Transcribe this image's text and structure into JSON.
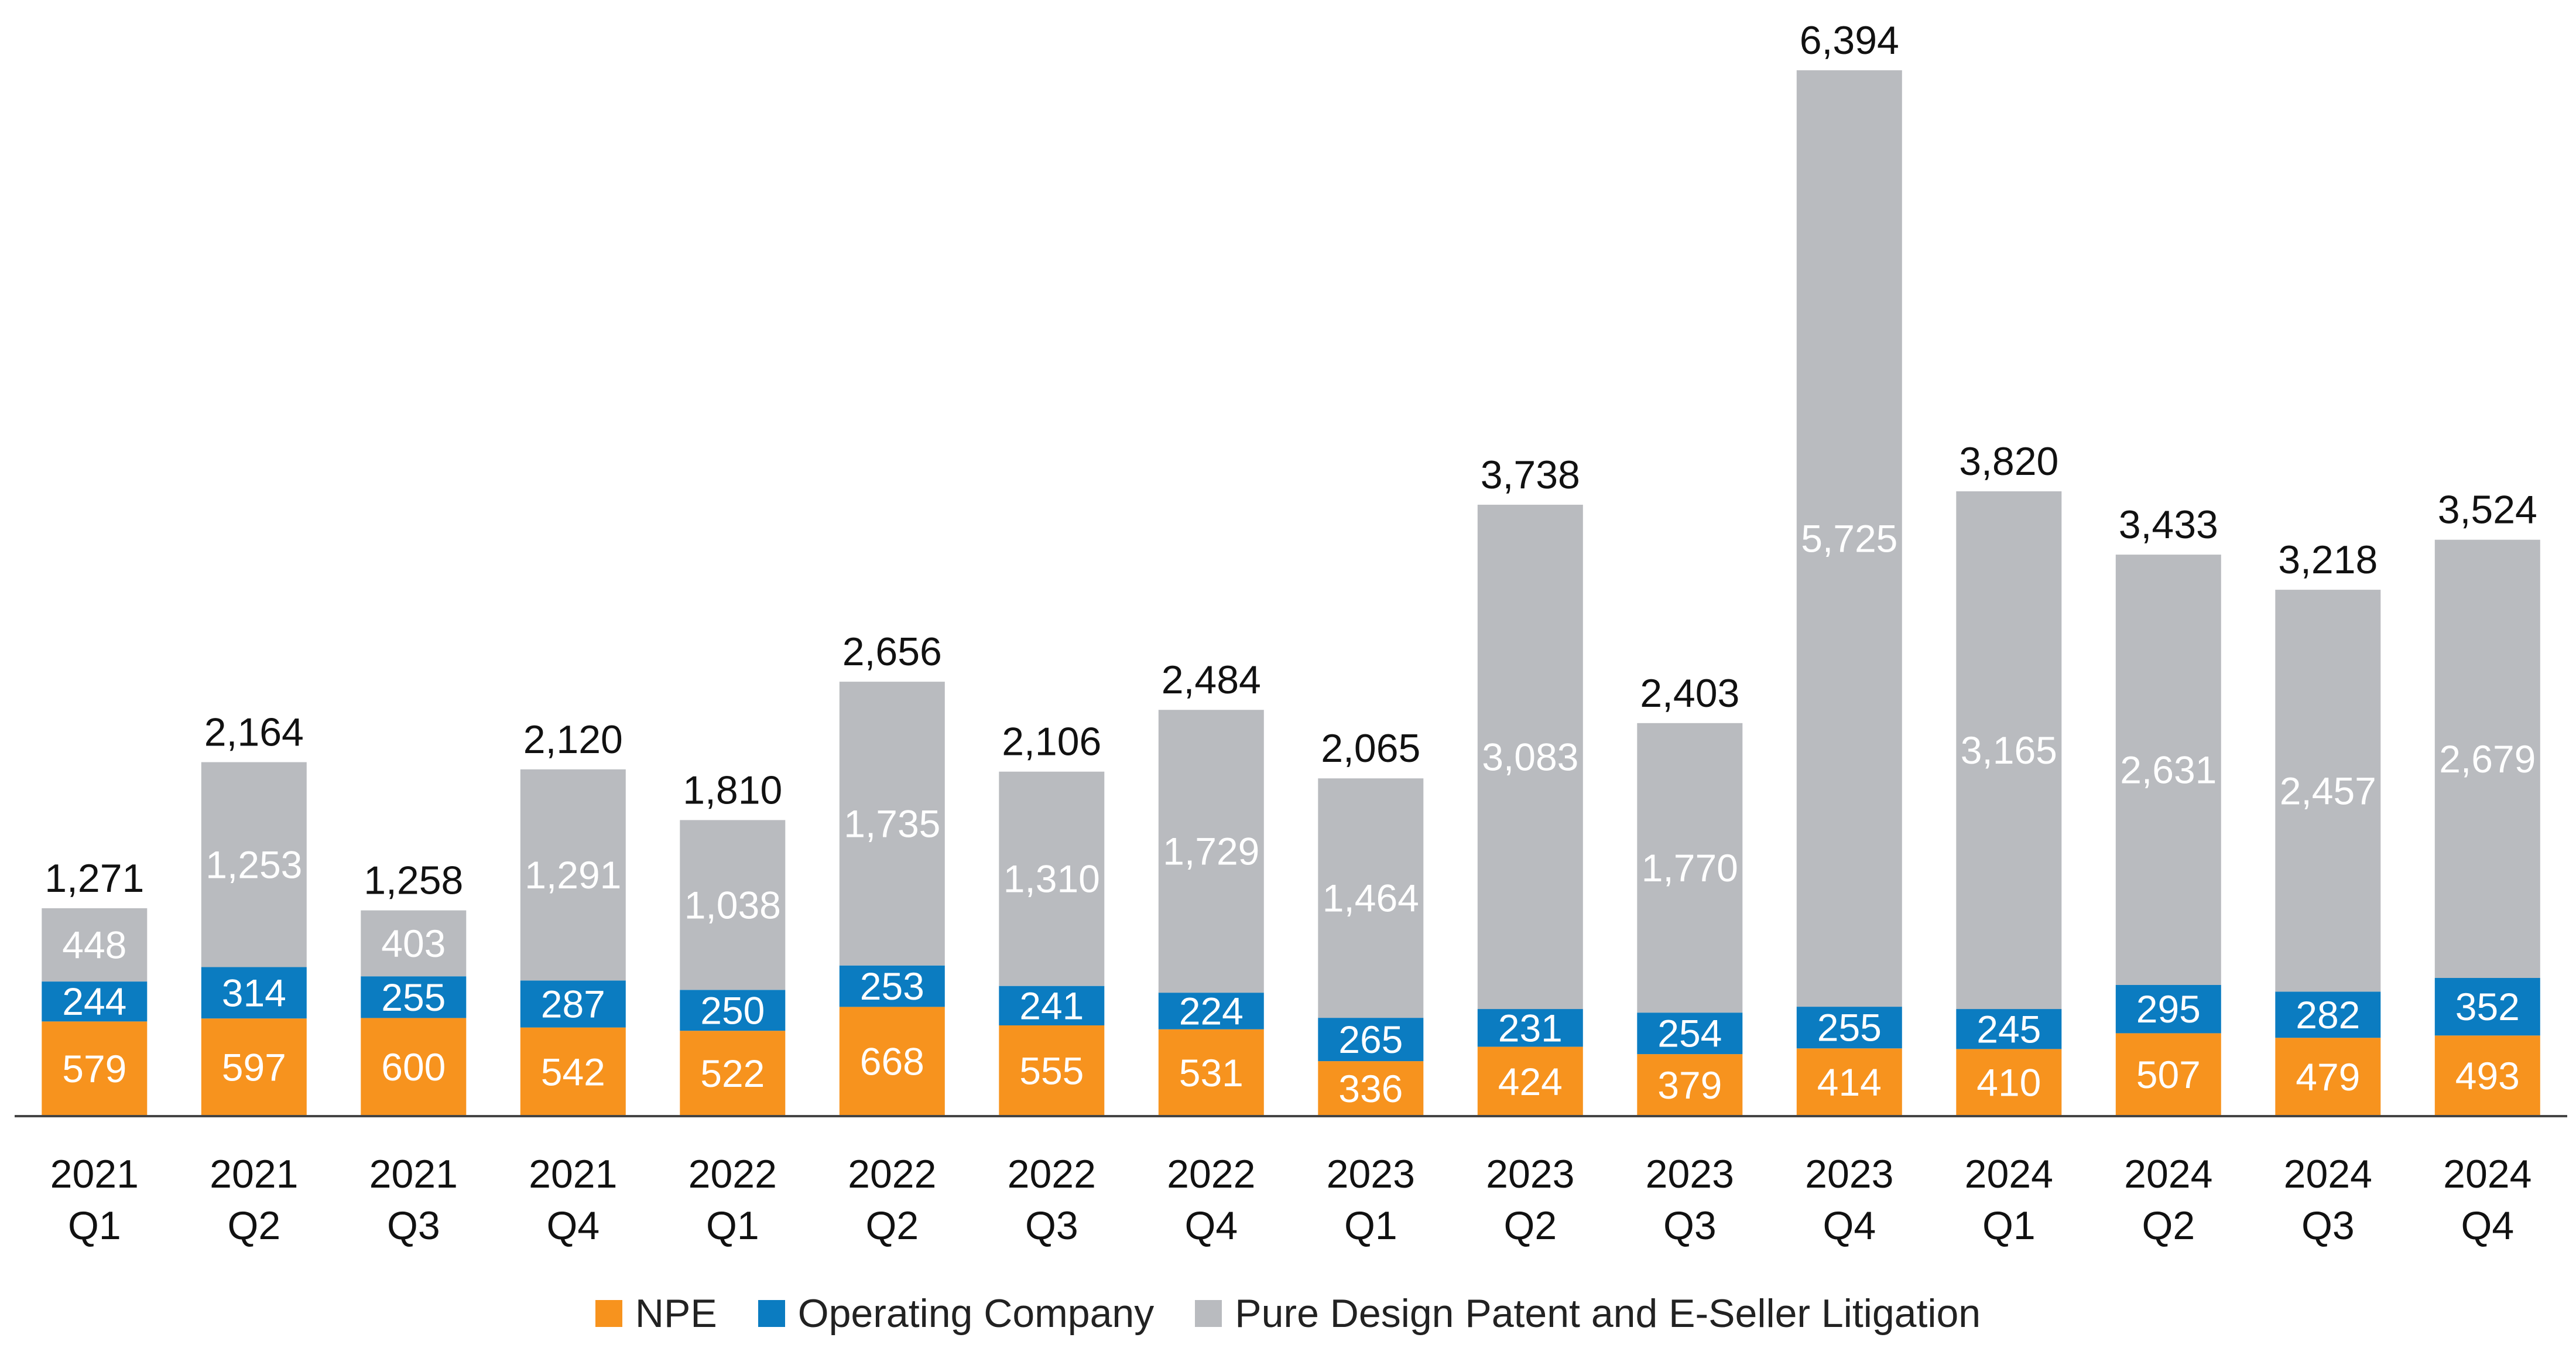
{
  "chart_data": {
    "type": "bar",
    "stacked": true,
    "categories": [
      [
        "2021",
        "Q1"
      ],
      [
        "2021",
        "Q2"
      ],
      [
        "2021",
        "Q3"
      ],
      [
        "2021",
        "Q4"
      ],
      [
        "2022",
        "Q1"
      ],
      [
        "2022",
        "Q2"
      ],
      [
        "2022",
        "Q3"
      ],
      [
        "2022",
        "Q4"
      ],
      [
        "2023",
        "Q1"
      ],
      [
        "2023",
        "Q2"
      ],
      [
        "2023",
        "Q3"
      ],
      [
        "2023",
        "Q4"
      ],
      [
        "2024",
        "Q1"
      ],
      [
        "2024",
        "Q2"
      ],
      [
        "2024",
        "Q3"
      ],
      [
        "2024",
        "Q4"
      ]
    ],
    "series": [
      {
        "name": "NPE",
        "color": "#F7931E",
        "values": [
          579,
          597,
          600,
          542,
          522,
          668,
          555,
          531,
          336,
          424,
          379,
          414,
          410,
          507,
          479,
          493
        ],
        "labels": [
          "579",
          "597",
          "600",
          "542",
          "522",
          "668",
          "555",
          "531",
          "336",
          "424",
          "379",
          "414",
          "410",
          "507",
          "479",
          "493"
        ]
      },
      {
        "name": "Operating Company",
        "color": "#0B7CC1",
        "values": [
          244,
          314,
          255,
          287,
          250,
          253,
          241,
          224,
          265,
          231,
          254,
          255,
          245,
          295,
          282,
          352
        ],
        "labels": [
          "244",
          "314",
          "255",
          "287",
          "250",
          "253",
          "241",
          "224",
          "265",
          "231",
          "254",
          "255",
          "245",
          "295",
          "282",
          "352"
        ]
      },
      {
        "name": "Pure Design Patent and E-Seller Litigation",
        "color": "#B9BBBF",
        "values": [
          448,
          1253,
          403,
          1291,
          1038,
          1735,
          1310,
          1729,
          1464,
          3083,
          1770,
          5725,
          3165,
          2631,
          2457,
          2679
        ],
        "labels": [
          "448",
          "1,253",
          "403",
          "1,291",
          "1,038",
          "1,735",
          "1,310",
          "1,729",
          "1,464",
          "3,083",
          "1,770",
          "5,725",
          "3,165",
          "2,631",
          "2,457",
          "2,679"
        ]
      }
    ],
    "totals": [
      1271,
      2164,
      1258,
      2120,
      1810,
      2656,
      2106,
      2484,
      2065,
      3738,
      2403,
      6394,
      3820,
      3433,
      3218,
      3524
    ],
    "total_labels": [
      "1,271",
      "2,164",
      "1,258",
      "2,120",
      "1,810",
      "2,656",
      "2,106",
      "2,484",
      "2,065",
      "3,738",
      "2,403",
      "6,394",
      "3,820",
      "3,433",
      "3,218",
      "3,524"
    ],
    "title": "",
    "xlabel": "",
    "ylabel": "",
    "ylim": [
      0,
      6394
    ],
    "grid": false,
    "legend_position": "bottom"
  }
}
